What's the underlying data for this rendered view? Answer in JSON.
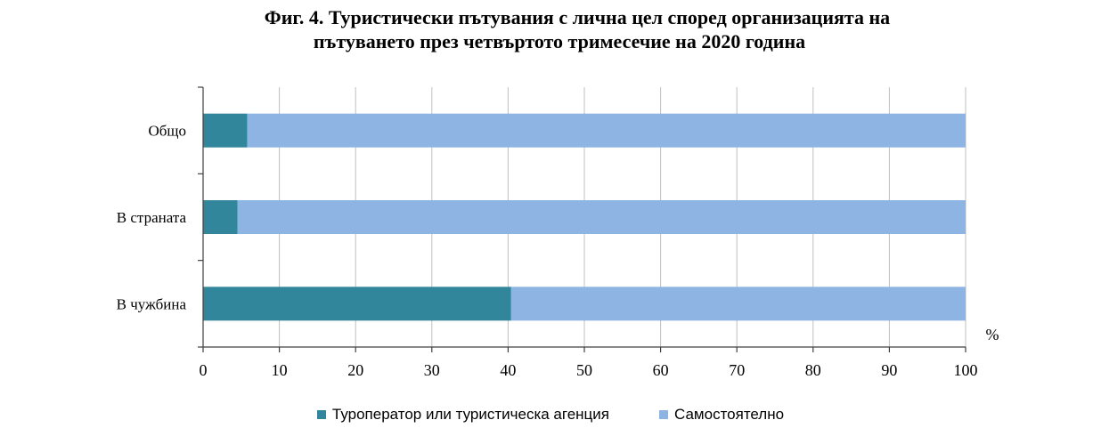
{
  "chart_data": {
    "type": "bar",
    "orientation": "horizontal",
    "stacked": true,
    "title": "Фиг. 4. Туристически пътувания с лична цел според организацията на пътуването през четвъртото тримесечие на 2020 година",
    "title_lines": [
      "Фиг. 4. Туристически пътувания с лична цел според организацията на",
      "пътуването през четвъртото тримесечие на 2020 година"
    ],
    "categories": [
      "Общо",
      "В страната",
      "В чужбина"
    ],
    "series": [
      {
        "name": "Туроператор или  туристическа агенция",
        "color": "#31869B",
        "values": [
          5.8,
          4.5,
          40.4
        ]
      },
      {
        "name": "Самостоятелно",
        "color": "#8EB4E3",
        "values": [
          94.2,
          95.5,
          59.6
        ]
      }
    ],
    "xlabel": "%",
    "xlim": [
      0,
      100
    ],
    "xticks": [
      "0",
      "10",
      "20",
      "30",
      "40",
      "50",
      "60",
      "70",
      "80",
      "90",
      "100"
    ],
    "grid": true,
    "legend_position": "bottom"
  }
}
